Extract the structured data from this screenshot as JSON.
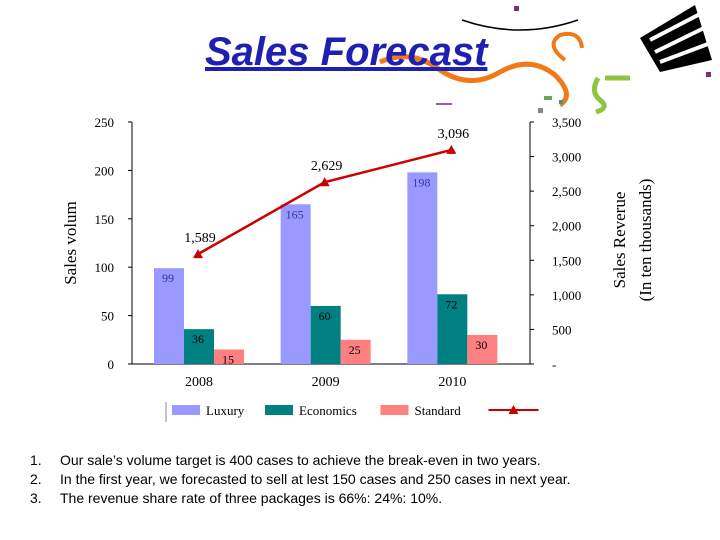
{
  "slide": {
    "title": "Sales Forecast",
    "notes": [
      {
        "num": "1.",
        "text": "Our sale’s volume target is 400 cases to achieve the break-even in two years."
      },
      {
        "num": "2.",
        "text": "In the first year, we forecasted to sell at lest 150 cases and 250 cases in next year."
      },
      {
        "num": "3.",
        "text": "The revenue share rate of three packages is 66%: 24%: 10%."
      }
    ]
  },
  "chart_data": {
    "type": "bar",
    "categories": [
      "2008",
      "2009",
      "2010"
    ],
    "ylabel": "Sales volum",
    "y2label": [
      "Sales Reverue",
      "(In ten thousands)"
    ],
    "ylim": [
      0,
      250
    ],
    "y_ticks": [
      "0",
      "50",
      "100",
      "150",
      "200",
      "250"
    ],
    "y2lim": [
      0,
      3500
    ],
    "y2_ticks": [
      "-",
      "500",
      "1,000",
      "1,500",
      "2,000",
      "2,500",
      "3,000",
      "3,500"
    ],
    "series": [
      {
        "name": "Luxury",
        "values": [
          99,
          165,
          198
        ],
        "labels": [
          "99",
          "165",
          "198"
        ],
        "color": "#9999ff"
      },
      {
        "name": "Economics",
        "values": [
          36,
          60,
          72
        ],
        "labels": [
          "36",
          "60",
          "72"
        ],
        "color": "#008080"
      },
      {
        "name": "Standard",
        "values": [
          15,
          25,
          30
        ],
        "labels": [
          "15",
          "25",
          "30"
        ],
        "color": "#ff8080"
      }
    ],
    "line": {
      "axis": "right",
      "values": [
        1589,
        2629,
        3096
      ],
      "labels": [
        "1,589",
        "2,629",
        "3,096"
      ],
      "color": "#cc0000"
    },
    "legend": "bottom"
  }
}
